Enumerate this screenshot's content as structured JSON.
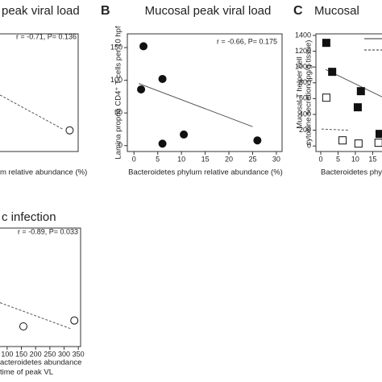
{
  "chart_data": [
    {
      "type": "scatter",
      "title": "peak viral load",
      "annotation": "r = -0.71, P= 0.136",
      "xlabel": [
        "m relative abundance (%)"
      ],
      "xlim": [
        -1.5,
        28.5
      ],
      "ylim": [
        0,
        100
      ],
      "series": [
        {
          "marker": "circle",
          "filled": false,
          "x": [
            26
          ],
          "values": [
            18
          ]
        }
      ],
      "fits": [
        {
          "dashed": true,
          "x": [
            5.6,
            24
          ],
          "y": [
            48,
            19
          ]
        }
      ]
    },
    {
      "type": "scatter",
      "panel_label": "B",
      "title": "Mucosal peak viral load",
      "annotation": "r = -0.66, P= 0.175",
      "xlabel": [
        "Bacteroidetes phylum relative abundance (%)"
      ],
      "ylabel": [
        "Lamina propria CD4⁺ T cells per 10 hpf"
      ],
      "xlim": [
        -1.4,
        31.2
      ],
      "ylim": [
        -9,
        171
      ],
      "xticks": [
        0,
        5,
        10,
        15,
        20,
        25,
        30
      ],
      "yticks": [
        0,
        50,
        100,
        150
      ],
      "series": [
        {
          "marker": "circle",
          "filled": true,
          "x": [
            2,
            1.5,
            6,
            6,
            10.5,
            26
          ],
          "values": [
            152,
            86,
            102,
            3,
            17,
            8
          ]
        }
      ],
      "fits": [
        {
          "dashed": false,
          "x": [
            1,
            25
          ],
          "y": [
            95,
            29
          ]
        }
      ]
    },
    {
      "type": "scatter",
      "panel_label": "C",
      "title": "Mucosal",
      "xlabel": [
        "Bacteroidetes phy"
      ],
      "ylabel": [
        "Mucosal T helper cell",
        "cytokine secretion (pg/g tissue)"
      ],
      "xlim": [
        -1.4,
        19.1
      ],
      "ylim": [
        -70,
        1420
      ],
      "xticks": [
        0,
        5,
        10,
        15
      ],
      "yticks": [
        0,
        200,
        400,
        600,
        800,
        1000,
        1200,
        1400
      ],
      "series": [
        {
          "marker": "square",
          "filled": true,
          "x": [
            1.6,
            3.3,
            11.6,
            10.7,
            17
          ],
          "values": [
            1306,
            939,
            694,
            490,
            153
          ]
        },
        {
          "marker": "square",
          "filled": false,
          "x": [
            1.6,
            6.3,
            10.9,
            16.7
          ],
          "values": [
            612,
            71,
            31,
            41
          ]
        }
      ],
      "fits": [
        {
          "dashed": false,
          "x": [
            1.4,
            17.7
          ],
          "y": [
            969,
            622
          ]
        },
        {
          "dashed": true,
          "x": [
            0.2,
            8
          ],
          "y": [
            214,
            200
          ]
        }
      ]
    },
    {
      "type": "scatter",
      "title": "c infection",
      "annotation": "r = -0.89, P= 0.033",
      "xlabel": [
        "acteroidetes abundance",
        "time of peak VL"
      ],
      "xlim": [
        -10,
        358
      ],
      "ylim": [
        0,
        100
      ],
      "xticks": [
        100,
        150,
        200,
        250,
        300,
        350
      ],
      "series": [
        {
          "marker": "circle",
          "filled": false,
          "x": [
            157,
            336
          ],
          "values": [
            17,
            22
          ]
        }
      ],
      "fits": [
        {
          "dashed": true,
          "x": [
            75,
            324
          ],
          "y": [
            37,
            15
          ]
        }
      ]
    }
  ]
}
